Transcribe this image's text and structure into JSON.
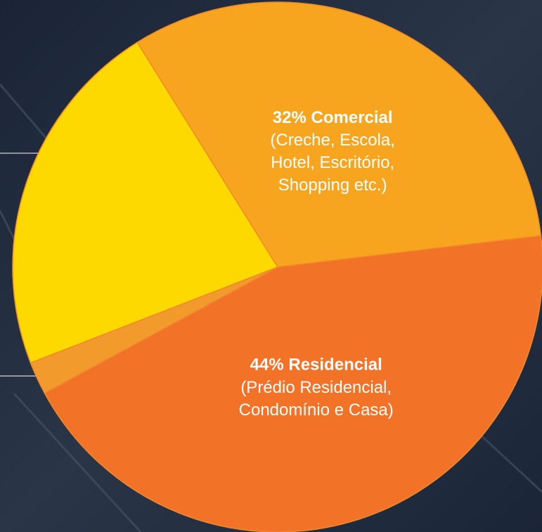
{
  "chart_data": {
    "type": "pie",
    "categories": [
      "Comercial",
      "Residencial",
      null,
      null
    ],
    "values": [
      32,
      44,
      2,
      22
    ],
    "value_labels": [
      "32%",
      "44%",
      null,
      null
    ],
    "descriptions": [
      [
        "(Creche, Escola,",
        "Hotel, Escritório,",
        "Shopping etc.)"
      ],
      [
        "(Prédio Residencial,",
        "Condomínio e Casa)"
      ],
      null,
      null
    ],
    "colors": [
      "#f7a51f",
      "#f27228",
      "#f39a2c",
      "#fdd900"
    ]
  }
}
